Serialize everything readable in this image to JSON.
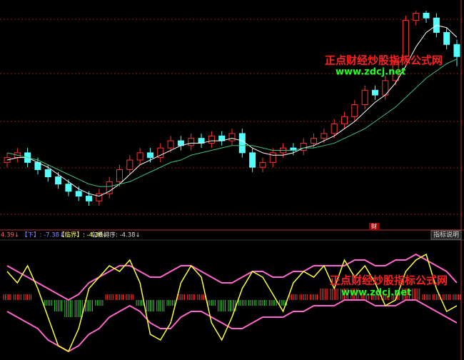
{
  "chart_data": [
    {
      "type": "candlestick",
      "open": [
        36,
        38,
        40,
        36,
        33,
        30,
        27,
        24,
        22,
        20,
        23,
        28,
        33,
        37,
        40,
        38,
        42,
        45,
        43,
        46,
        44,
        47,
        45,
        48,
        40,
        34,
        36,
        40,
        42,
        41,
        44,
        46,
        48,
        52,
        55,
        60,
        66,
        64,
        70,
        80,
        95,
        98,
        96,
        90,
        85
      ],
      "close": [
        38,
        40,
        36,
        33,
        30,
        27,
        24,
        22,
        20,
        23,
        28,
        33,
        37,
        40,
        38,
        42,
        45,
        43,
        46,
        44,
        47,
        45,
        48,
        40,
        34,
        36,
        40,
        42,
        41,
        44,
        46,
        48,
        52,
        55,
        60,
        66,
        64,
        70,
        78,
        95,
        98,
        96,
        90,
        85,
        80
      ],
      "high": [
        40,
        42,
        42,
        38,
        35,
        32,
        29,
        26,
        24,
        25,
        30,
        35,
        39,
        42,
        42,
        44,
        47,
        47,
        48,
        48,
        49,
        49,
        50,
        50,
        42,
        38,
        42,
        44,
        44,
        46,
        48,
        50,
        54,
        57,
        62,
        68,
        68,
        72,
        80,
        97,
        99,
        99,
        98,
        92,
        87
      ],
      "low": [
        34,
        36,
        34,
        31,
        28,
        25,
        22,
        20,
        18,
        18,
        21,
        26,
        31,
        35,
        36,
        36,
        40,
        41,
        41,
        42,
        42,
        43,
        43,
        38,
        32,
        32,
        34,
        38,
        39,
        39,
        42,
        44,
        46,
        50,
        53,
        58,
        62,
        62,
        68,
        78,
        93,
        94,
        88,
        83,
        76
      ],
      "up_color": "#ff3232",
      "down_color": "#54ffff",
      "series": [
        {
          "color": "#ffffff",
          "values": [
            37,
            38,
            38,
            36,
            34,
            31,
            28,
            25,
            23,
            22,
            24,
            27,
            31,
            35,
            37,
            39,
            41,
            43,
            44,
            44,
            45,
            45,
            46,
            45,
            42,
            40,
            39,
            39,
            40,
            42,
            43,
            45,
            47,
            50,
            53,
            57,
            61,
            64,
            69,
            76,
            84,
            90,
            93,
            92,
            88
          ]
        },
        {
          "color": "#40c080",
          "values": [
            40,
            39,
            38,
            37,
            35,
            33,
            31,
            29,
            27,
            26,
            26,
            27,
            28,
            30,
            32,
            34,
            36,
            37,
            39,
            40,
            41,
            42,
            43,
            43,
            43,
            42,
            41,
            41,
            41,
            42,
            42,
            43,
            44,
            46,
            48,
            50,
            53,
            56,
            59,
            63,
            67,
            71,
            74,
            77,
            79
          ]
        }
      ],
      "ylim": [
        10,
        102
      ]
    },
    {
      "type": "indicator",
      "series": [
        {
          "color": "#ff66cc",
          "values": [
            6,
            5,
            4,
            3,
            2,
            1,
            0,
            1,
            3,
            4,
            5,
            6,
            6,
            5,
            4,
            4,
            5,
            6,
            6,
            5,
            4,
            3,
            3,
            4,
            5,
            5,
            4,
            4,
            5,
            5,
            6,
            6,
            6,
            6,
            7,
            7,
            6,
            6,
            7,
            7,
            8,
            7,
            6,
            5,
            3
          ]
        },
        {
          "color": "#ff66cc",
          "values": [
            -2,
            -3,
            -4,
            -5,
            -7,
            -8,
            -9,
            -8,
            -6,
            -5,
            -3,
            -2,
            -1,
            -2,
            -4,
            -5,
            -5,
            -3,
            -2,
            -2,
            -3,
            -4,
            -5,
            -5,
            -4,
            -3,
            -3,
            -3,
            -2,
            -2,
            -1,
            -1,
            -1,
            0,
            0,
            0,
            -1,
            -1,
            -1,
            0,
            0,
            -1,
            -2,
            -3,
            -4
          ]
        },
        {
          "color": "#ffff33",
          "values": [
            5,
            3,
            6,
            2,
            -3,
            -8,
            -9,
            -5,
            2,
            4,
            6,
            5,
            7,
            3,
            -6,
            -7,
            -4,
            3,
            6,
            4,
            -4,
            -7,
            -3,
            2,
            5,
            4,
            1,
            -2,
            3,
            5,
            4,
            6,
            2,
            7,
            4,
            6,
            3,
            -1,
            0,
            5,
            7,
            8,
            2,
            -2,
            -1
          ]
        }
      ],
      "histogram": [
        1,
        1,
        1,
        0,
        -1,
        -2,
        -3,
        -3,
        -2,
        -1,
        1,
        1,
        1,
        -1,
        -2,
        -2,
        -1,
        1,
        1,
        1,
        -1,
        -2,
        -2,
        -1,
        -1,
        -1,
        -1,
        -1,
        1,
        1,
        1,
        2,
        2,
        2,
        2,
        1,
        1,
        1,
        1,
        2,
        2,
        1,
        1,
        1,
        1
      ],
      "up_color": "#ff3232",
      "down_color": "#33cc33",
      "ylim": [
        -10,
        10
      ]
    }
  ],
  "indicator_header": [
    "4.39↓",
    "【下】: -7.38↓",
    "【临界】: -4.38↓",
    "包杨排序: -4.38↓"
  ],
  "indicator_button": "指标说明",
  "marker": "财",
  "watermark": {
    "name": "正点财经炒股指标公式网",
    "url": "www.zdcj.net"
  }
}
